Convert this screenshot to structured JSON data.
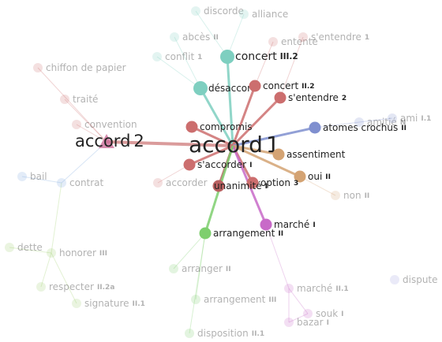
{
  "nodes": [
    {
      "label": "accord",
      "sense": "1"
    },
    {
      "label": "accord",
      "sense": "2"
    },
    {
      "label": "concert",
      "sense": "III.2"
    },
    {
      "label": "désaccord"
    },
    {
      "label": "concert",
      "sense": "II.2"
    },
    {
      "label": "s'entendre",
      "sense": "2"
    },
    {
      "label": "compromis"
    },
    {
      "label": "atomes crochus",
      "sense": "II"
    },
    {
      "label": "assentiment"
    },
    {
      "label": "s'accorder",
      "sense": "I"
    },
    {
      "label": "oui",
      "sense": "II"
    },
    {
      "label": "option",
      "sense": "3"
    },
    {
      "label": "unanimité",
      "sense": "I"
    },
    {
      "label": "marché",
      "sense": "I"
    },
    {
      "label": "arrangement",
      "sense": "II"
    },
    {
      "label": "discorde"
    },
    {
      "label": "alliance"
    },
    {
      "label": "abcès",
      "sense": "II"
    },
    {
      "label": "entente"
    },
    {
      "label": "s'entendre",
      "sense": "1"
    },
    {
      "label": "conflit",
      "sense": "1"
    },
    {
      "label": "chiffon de papier"
    },
    {
      "label": "traité"
    },
    {
      "label": "convention"
    },
    {
      "label": "bail"
    },
    {
      "label": "contrat"
    },
    {
      "label": "accorder"
    },
    {
      "label": "amitié",
      "sense": "N"
    },
    {
      "label": "ami",
      "sense": "I.1"
    },
    {
      "label": "non",
      "sense": "II"
    },
    {
      "label": "dette"
    },
    {
      "label": "honorer",
      "sense": "III"
    },
    {
      "label": "arranger",
      "sense": "II"
    },
    {
      "label": "dispute"
    },
    {
      "label": "respecter",
      "sense": "II.2a"
    },
    {
      "label": "marché",
      "sense": "II.1"
    },
    {
      "label": "arrangement",
      "sense": "III"
    },
    {
      "label": "signature",
      "sense": "II.1"
    },
    {
      "label": "souk",
      "sense": "I"
    },
    {
      "label": "bazar",
      "sense": "I"
    },
    {
      "label": "disposition",
      "sense": "II.1"
    }
  ]
}
